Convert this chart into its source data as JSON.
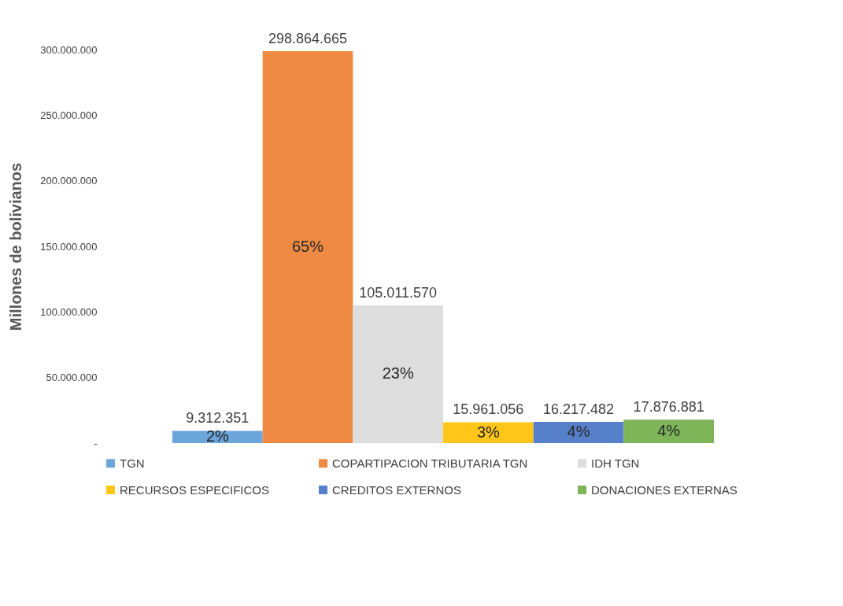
{
  "chart_data": {
    "type": "bar",
    "ylabel": "Millones de bolivianos",
    "categories": [
      null
    ],
    "series": [
      {
        "name": "TGN",
        "color": "#5b9bd5",
        "values": [
          9312351
        ],
        "value_labels": [
          "9.312.351"
        ]
      },
      {
        "name": "COPARTIPACION TRIBUTARIA TGN",
        "color": "#ed7d31",
        "values": [
          298864665
        ],
        "value_labels": [
          "298.864.665"
        ]
      },
      {
        "name": "IDH TGN",
        "color": "#d9d9d9",
        "values": [
          105011570
        ],
        "value_labels": [
          "105.011.570"
        ]
      },
      {
        "name": "RECURSOS ESPECIFICOS",
        "color": "#ffc000",
        "values": [
          15961056
        ],
        "value_labels": [
          "15.961.056"
        ]
      },
      {
        "name": "CREDITOS EXTERNOS",
        "color": "#4472c4",
        "values": [
          16217482
        ],
        "value_labels": [
          "16.217.482"
        ]
      },
      {
        "name": "DONACIONES EXTERNAS",
        "color": "#70ad47",
        "values": [
          17876881
        ],
        "value_labels": [
          "17.876.881"
        ]
      }
    ],
    "annotations": [
      "2%",
      "65%",
      "23%",
      "3%",
      "4%",
      "4%"
    ],
    "ylim": [
      0,
      300000000
    ],
    "yticks": [
      {
        "value": 0,
        "label": "-"
      },
      {
        "value": 50000000,
        "label": "50.000.000"
      },
      {
        "value": 100000000,
        "label": "100.000.000"
      },
      {
        "value": 150000000,
        "label": "150.000.000"
      },
      {
        "value": 200000000,
        "label": "200.000.000"
      },
      {
        "value": 250000000,
        "label": "250.000.000"
      },
      {
        "value": 300000000,
        "label": "300.000.000"
      }
    ],
    "tick_labels": "y",
    "legend": "bottom"
  }
}
